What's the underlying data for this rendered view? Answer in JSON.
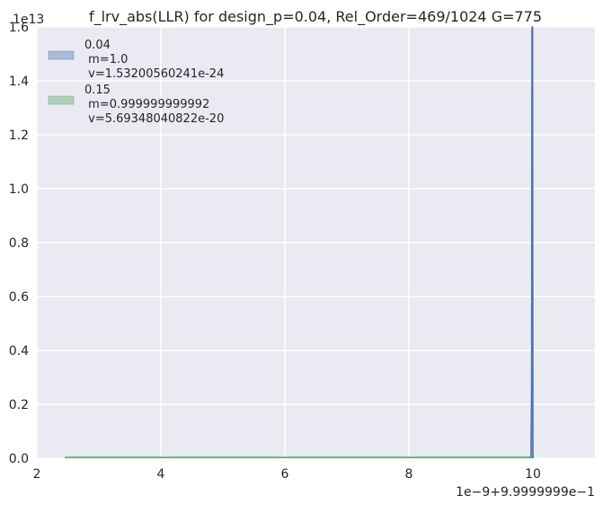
{
  "chart_data": {
    "type": "area",
    "title": "f_lrv_abs(LLR) for design_p=0.04, Rel_Order=469/1024 G=775",
    "xlabel": "",
    "ylabel": "",
    "y_multiplier_label": "1e13",
    "x_offset_label": "1e−9+9.9999999e−1",
    "xlim": [
      2,
      11
    ],
    "ylim": [
      0,
      1.6
    ],
    "x_ticks": [
      2,
      4,
      6,
      8,
      10
    ],
    "x_tick_labels": [
      "2",
      "4",
      "6",
      "8",
      "10"
    ],
    "y_ticks": [
      0.0,
      0.2,
      0.4,
      0.6,
      0.8,
      1.0,
      1.2,
      1.4,
      1.6
    ],
    "y_tick_labels": [
      "0.0",
      "0.2",
      "0.4",
      "0.6",
      "0.8",
      "1.0",
      "1.2",
      "1.4",
      "1.6"
    ],
    "grid": true,
    "legend_position": "top-left",
    "series": [
      {
        "name": "0.04",
        "legend_lines": [
          "0.04",
          " m=1.0",
          " v=1.53200560241e-24"
        ],
        "color": "#4c72b0",
        "x": [
          9.95,
          9.97,
          9.98,
          9.985,
          9.99,
          9.995,
          10.0,
          10.005
        ],
        "y": [
          0,
          0.01,
          0.28,
          1.6,
          1.6,
          1.6,
          0.02,
          0
        ]
      },
      {
        "name": "0.15",
        "legend_lines": [
          "0.15",
          " m=0.999999999992",
          " v=5.69348040822e-20"
        ],
        "color": "#55a868",
        "x": [
          2.45,
          4,
          6,
          8,
          9.9,
          9.98,
          10.0
        ],
        "y": [
          0.003,
          0.003,
          0.003,
          0.003,
          0.003,
          0.005,
          0
        ]
      }
    ]
  }
}
